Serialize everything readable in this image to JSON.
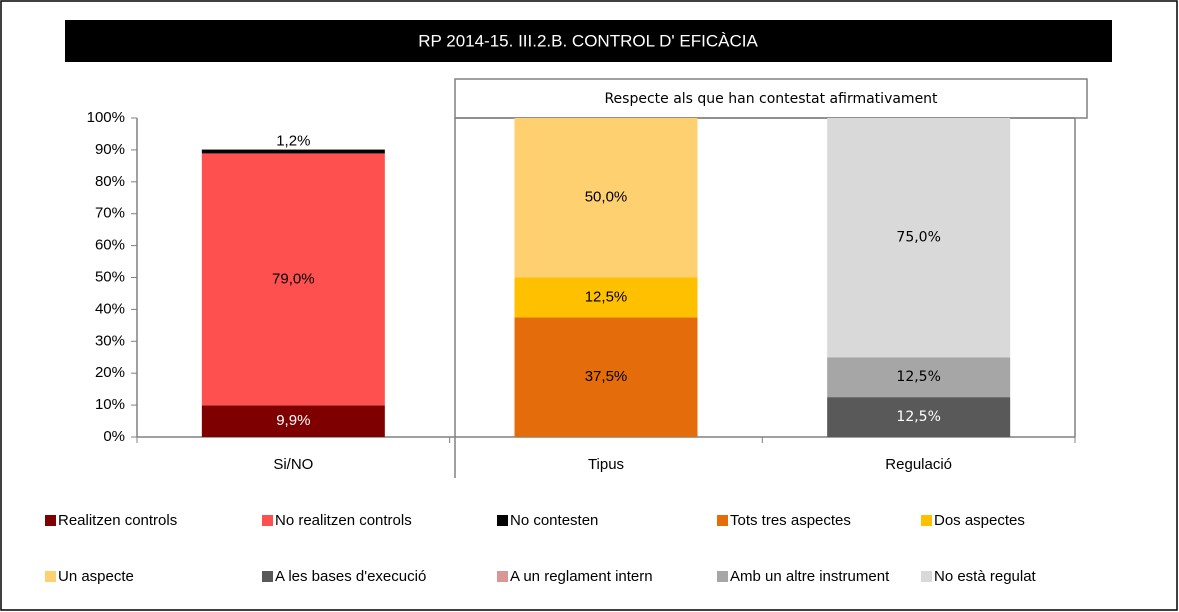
{
  "chart_data": {
    "type": "stacked_bar",
    "title": "RP 2014-15. III.2.B. CONTROL D' EFICÀCIA",
    "subtitle": "Respecte als que han contestat afirmativament",
    "categories": [
      "Si/NO",
      "Tipus",
      "Regulació"
    ],
    "series": [
      {
        "name": "Realitzen controls",
        "color": "#7f0000",
        "values": [
          9.9,
          null,
          null
        ],
        "value_labels": [
          "9,9%",
          null,
          null
        ]
      },
      {
        "name": "No realitzen controls",
        "color": "#ff5050",
        "values": [
          79.0,
          null,
          null
        ],
        "value_labels": [
          "79,0%",
          null,
          null
        ]
      },
      {
        "name": "No contesten",
        "color": "#000000",
        "values": [
          1.2,
          null,
          null
        ],
        "value_labels": [
          "1,2%",
          null,
          null
        ]
      },
      {
        "name": "Tots tres aspectes",
        "color": "#e46c0a",
        "values": [
          null,
          37.5,
          null
        ],
        "value_labels": [
          null,
          "37,5%",
          null
        ]
      },
      {
        "name": "Dos aspectes",
        "color": "#ffc000",
        "values": [
          null,
          12.5,
          null
        ],
        "value_labels": [
          null,
          "12,5%",
          null
        ]
      },
      {
        "name": "Un aspecte",
        "color": "#ffd070",
        "values": [
          null,
          50.0,
          null
        ],
        "value_labels": [
          null,
          "50,0%",
          null
        ]
      },
      {
        "name": "A les bases d'execució",
        "color": "#595959",
        "values": [
          null,
          null,
          12.5
        ],
        "value_labels": [
          null,
          null,
          "12,5%"
        ]
      },
      {
        "name": "A un reglament intern",
        "color": "#d99694",
        "values": [
          null,
          null,
          null
        ],
        "value_labels": [
          null,
          null,
          null
        ]
      },
      {
        "name": "Amb un altre instrument",
        "color": "#a6a6a6",
        "values": [
          null,
          null,
          12.5
        ],
        "value_labels": [
          null,
          null,
          "12,5%"
        ]
      },
      {
        "name": "No està regulat",
        "color": "#d9d9d9",
        "values": [
          null,
          null,
          75.0
        ],
        "value_labels": [
          null,
          null,
          "75,0%"
        ]
      }
    ],
    "ylim": [
      0,
      100
    ],
    "yticks": [
      {
        "value": 0,
        "label": "0%"
      },
      {
        "value": 10,
        "label": "10%"
      },
      {
        "value": 20,
        "label": "20%"
      },
      {
        "value": 30,
        "label": "30%"
      },
      {
        "value": 40,
        "label": "40%"
      },
      {
        "value": 50,
        "label": "50%"
      },
      {
        "value": 60,
        "label": "60%"
      },
      {
        "value": 70,
        "label": "70%"
      },
      {
        "value": 80,
        "label": "80%"
      },
      {
        "value": 90,
        "label": "90%"
      },
      {
        "value": 100,
        "label": "100%"
      }
    ],
    "legend": "bottom"
  }
}
